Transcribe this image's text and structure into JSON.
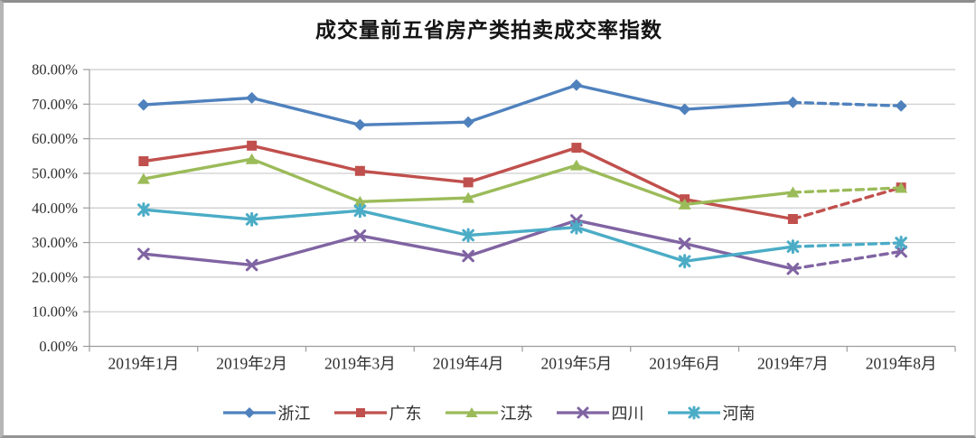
{
  "chart_data": {
    "type": "line",
    "title": "成交量前五省房产类拍卖成交率指数",
    "categories": [
      "2019年1月",
      "2019年2月",
      "2019年3月",
      "2019年4月",
      "2019年5月",
      "2019年6月",
      "2019年7月",
      "2019年8月"
    ],
    "y_axis": {
      "min": 0,
      "max": 80,
      "step": 10,
      "tick_labels": [
        "0.00%",
        "10.00%",
        "20.00%",
        "30.00%",
        "40.00%",
        "50.00%",
        "60.00%",
        "70.00%",
        "80.00%"
      ]
    },
    "grid": "horizontal",
    "legend_position": "bottom",
    "last_segment_style": "dashed",
    "series": [
      {
        "name": "浙江",
        "color": "#4F81BD",
        "marker": "diamond",
        "dashed_from_index": 6,
        "values": [
          69.8,
          71.8,
          64.0,
          64.8,
          75.5,
          68.5,
          70.5,
          69.5
        ]
      },
      {
        "name": "广东",
        "color": "#C0504D",
        "marker": "square",
        "dashed_from_index": 6,
        "values": [
          53.5,
          58.0,
          50.7,
          47.4,
          57.4,
          42.5,
          36.8,
          45.9
        ]
      },
      {
        "name": "江苏",
        "color": "#9BBB59",
        "marker": "triangle",
        "dashed_from_index": 6,
        "values": [
          48.4,
          54.1,
          41.8,
          42.9,
          52.3,
          41.0,
          44.5,
          45.8
        ]
      },
      {
        "name": "四川",
        "color": "#8064A2",
        "marker": "x",
        "dashed_from_index": 6,
        "values": [
          26.7,
          23.5,
          32.0,
          26.1,
          36.4,
          29.7,
          22.4,
          27.4
        ]
      },
      {
        "name": "河南",
        "color": "#4BACC6",
        "marker": "asterisk",
        "dashed_from_index": 6,
        "values": [
          39.5,
          36.7,
          39.2,
          32.1,
          34.4,
          24.6,
          28.8,
          29.9
        ]
      }
    ],
    "colors": {
      "gridline": "#c9c9c9",
      "axis": "#9c9c9c",
      "axis_text": "#2e2e2e"
    }
  }
}
